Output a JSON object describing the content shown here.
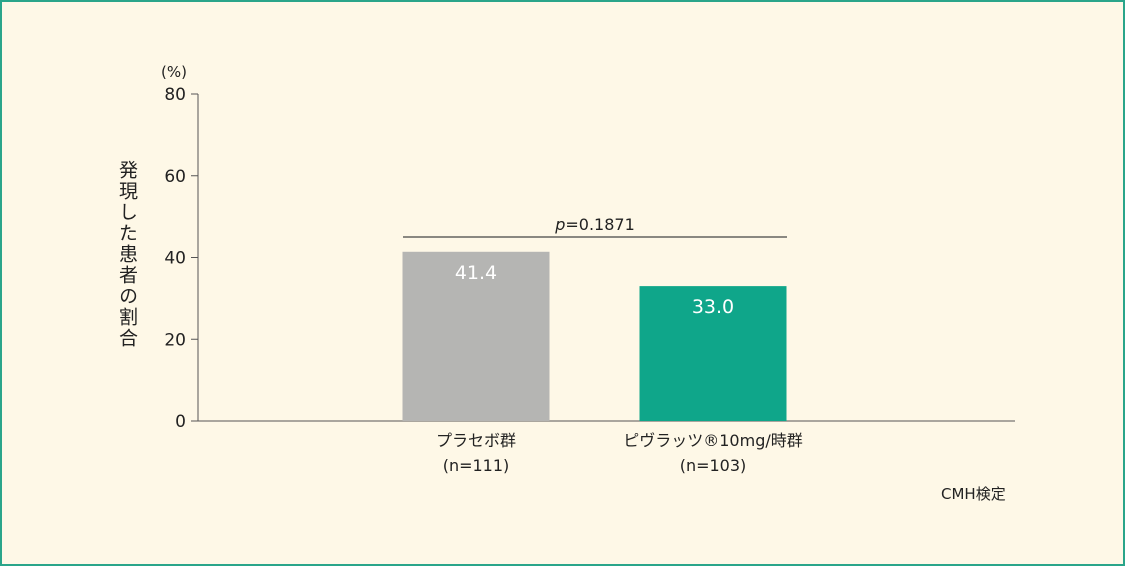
{
  "chart_data": {
    "type": "bar",
    "ylabel": "発現した患者の割合",
    "yunit": "(%)",
    "ylim": [
      0,
      80
    ],
    "yticks": [
      0,
      20,
      40,
      60,
      80
    ],
    "categories": [
      {
        "name": "プラセボ群",
        "n": "(n=111)"
      },
      {
        "name": "ピヴラッツ®10mg/時群",
        "n": "(n=103)"
      }
    ],
    "values": [
      41.4,
      33.0
    ],
    "value_labels": [
      "41.4",
      "33.0"
    ],
    "colors": [
      "#b5b5b3",
      "#0fa68a"
    ],
    "pvalue": {
      "prefix": "p",
      "text": "=0.1871"
    },
    "method": "CMH検定",
    "grid": false
  }
}
